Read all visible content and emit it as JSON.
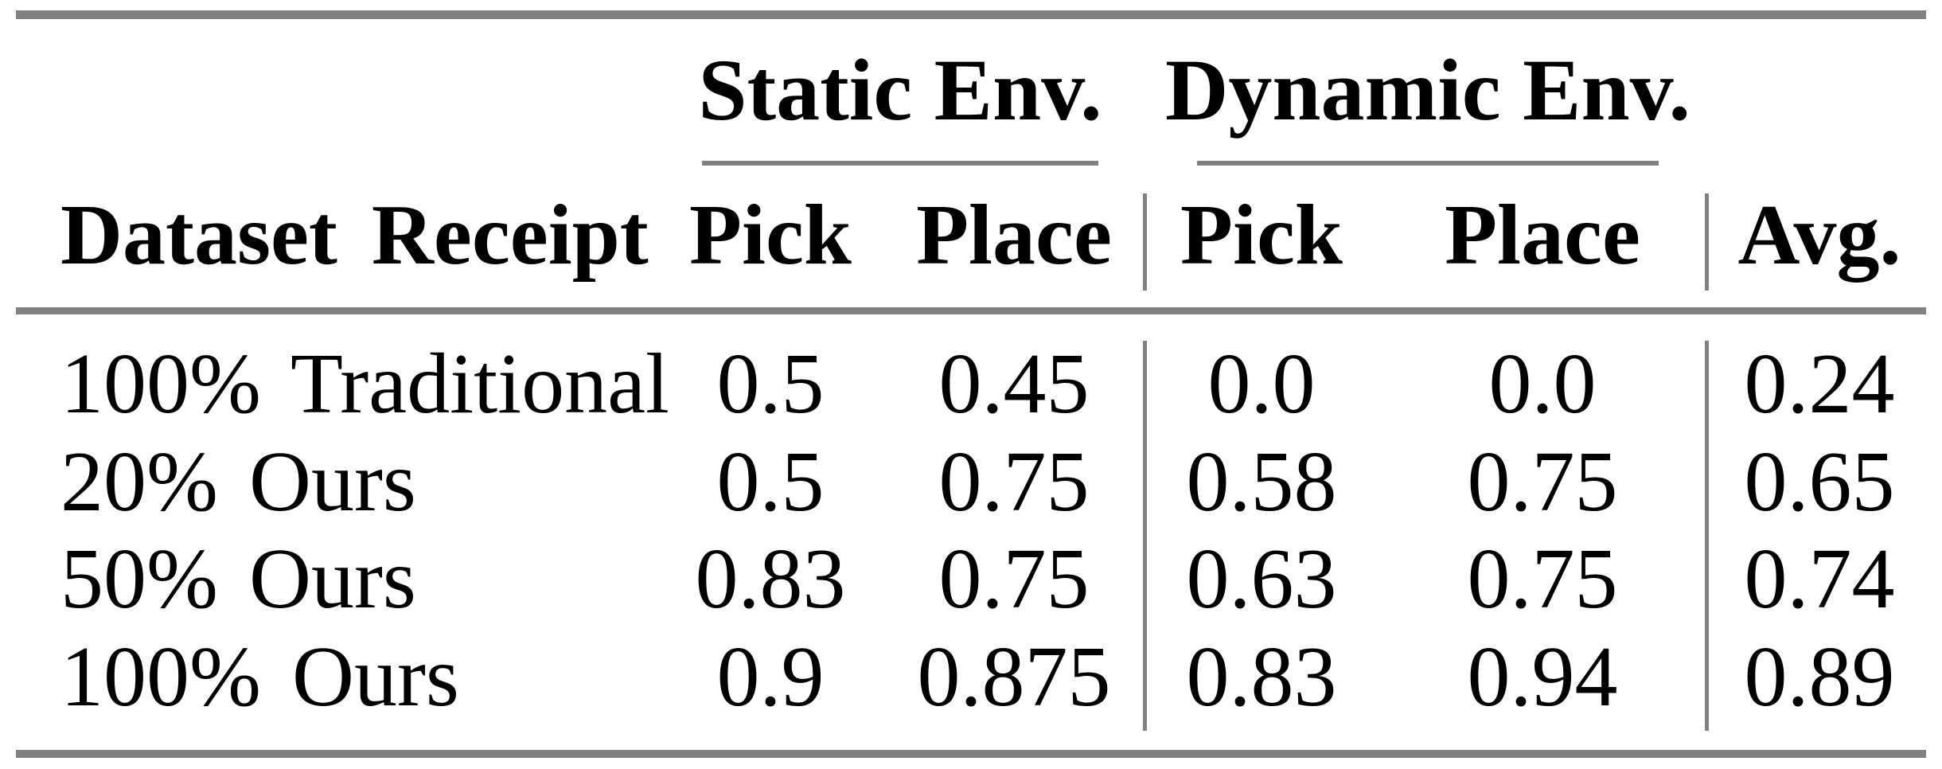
{
  "table": {
    "groups": [
      {
        "label": "Static Env."
      },
      {
        "label": "Dynamic Env."
      }
    ],
    "columns": [
      "Dataset Receipt",
      "Pick",
      "Place",
      "Pick",
      "Place",
      "Avg."
    ],
    "rows": [
      [
        "100% Traditional",
        "0.5",
        "0.45",
        "0.0",
        "0.0",
        "0.24"
      ],
      [
        "20% Ours",
        "0.5",
        "0.75",
        "0.58",
        "0.75",
        "0.65"
      ],
      [
        "50% Ours",
        "0.83",
        "0.75",
        "0.63",
        "0.75",
        "0.74"
      ],
      [
        "100% Ours",
        "0.9",
        "0.875",
        "0.83",
        "0.94",
        "0.89"
      ]
    ],
    "colors": {
      "rule": "#808080",
      "text": "#000000",
      "background": "#ffffff"
    }
  }
}
